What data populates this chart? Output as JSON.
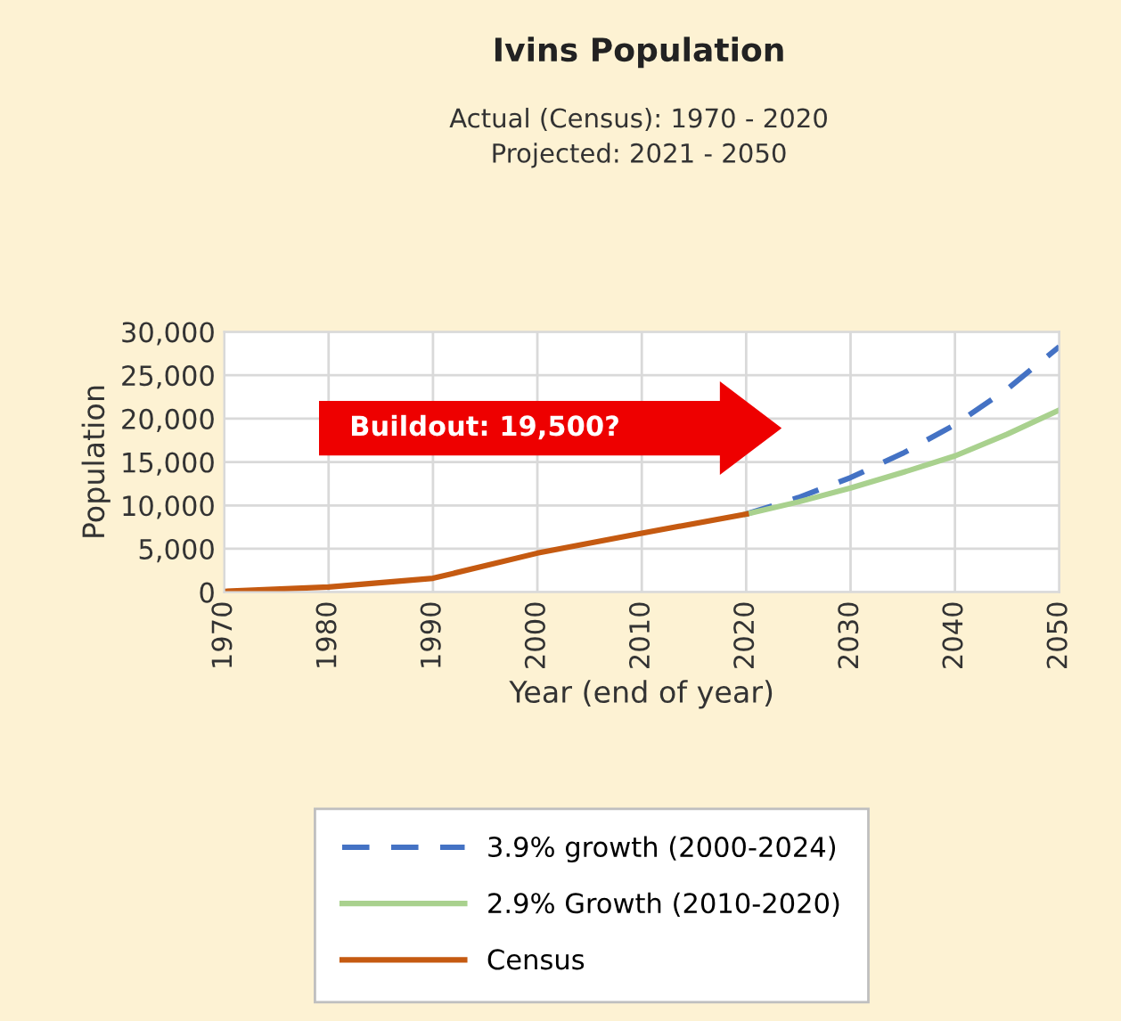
{
  "chart_data": {
    "type": "line",
    "title": "Ivins Population",
    "subtitle": "Actual (Census): 1970 - 2020\nProjected: 2021 - 2050",
    "xlabel": "Year (end of year)",
    "ylabel": "Population",
    "xlim": [
      1970,
      2050
    ],
    "xticks": [
      1970,
      1980,
      1990,
      2000,
      2010,
      2020,
      2030,
      2040,
      2050
    ],
    "ylim": [
      0,
      30000
    ],
    "yticks": [
      {
        "value": 0,
        "label": "0"
      },
      {
        "value": 5000,
        "label": "5,000"
      },
      {
        "value": 10000,
        "label": "10,000"
      },
      {
        "value": 15000,
        "label": "15,000"
      },
      {
        "value": 20000,
        "label": "20,000"
      },
      {
        "value": 25000,
        "label": "25,000"
      },
      {
        "value": 30000,
        "label": "30,000"
      }
    ],
    "grid": true,
    "legend": "bottom",
    "marker": "none",
    "annotations": [
      "Buildout: 19,500?"
    ],
    "series": [
      {
        "name": "3.9% growth (2000-2024)",
        "color": "#4472c4",
        "line_style": "dashed",
        "x": [
          2020,
          2025,
          2030,
          2035,
          2040,
          2045,
          2050
        ],
        "values": [
          9000,
          10900,
          13200,
          16000,
          19300,
          23400,
          28300
        ]
      },
      {
        "name": "2.9% Growth (2010-2020)",
        "color": "#a9d18e",
        "line_style": "solid",
        "x": [
          2020,
          2025,
          2030,
          2035,
          2040,
          2045,
          2050
        ],
        "values": [
          9000,
          10400,
          12000,
          13800,
          15700,
          18200,
          21000
        ]
      },
      {
        "name": "Census",
        "color": "#c55a11",
        "line_style": "solid",
        "x": [
          1970,
          1980,
          1990,
          2000,
          2010,
          2020
        ],
        "values": [
          100,
          600,
          1600,
          4500,
          6800,
          9000
        ]
      }
    ]
  }
}
